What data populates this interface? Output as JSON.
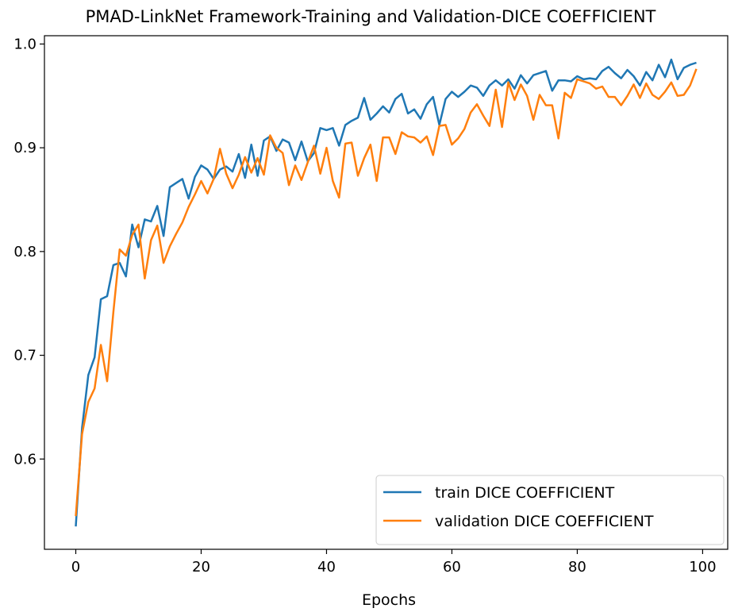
{
  "chart_data": {
    "type": "line",
    "title": "PMAD-LinkNet Framework-Training and Validation-DICE COEFFICIENT",
    "xlabel": "Epochs",
    "ylabel": "",
    "xlim": [
      -5,
      104
    ],
    "ylim": [
      0.513,
      1.008
    ],
    "xticks": [
      0,
      20,
      40,
      60,
      80,
      100
    ],
    "yticks": [
      0.6,
      0.7,
      0.8,
      0.9,
      1.0
    ],
    "xtick_labels": [
      "0",
      "20",
      "40",
      "60",
      "80",
      "100"
    ],
    "ytick_labels": [
      "0.6",
      "0.7",
      "0.8",
      "0.9",
      "1.0"
    ],
    "grid": false,
    "legend_position": "lower-right",
    "x": [
      0,
      1,
      2,
      3,
      4,
      5,
      6,
      7,
      8,
      9,
      10,
      11,
      12,
      13,
      14,
      15,
      16,
      17,
      18,
      19,
      20,
      21,
      22,
      23,
      24,
      25,
      26,
      27,
      28,
      29,
      30,
      31,
      32,
      33,
      34,
      35,
      36,
      37,
      38,
      39,
      40,
      41,
      42,
      43,
      44,
      45,
      46,
      47,
      48,
      49,
      50,
      51,
      52,
      53,
      54,
      55,
      56,
      57,
      58,
      59,
      60,
      61,
      62,
      63,
      64,
      65,
      66,
      67,
      68,
      69,
      70,
      71,
      72,
      73,
      74,
      75,
      76,
      77,
      78,
      79,
      80,
      81,
      82,
      83,
      84,
      85,
      86,
      87,
      88,
      89,
      90,
      91,
      92,
      93,
      94,
      95,
      96,
      97,
      98,
      99
    ],
    "series": [
      {
        "name": "train DICE COEFFICIENT",
        "color": "#1f77b4",
        "values": [
          0.535,
          0.63,
          0.681,
          0.698,
          0.754,
          0.757,
          0.787,
          0.789,
          0.776,
          0.826,
          0.804,
          0.831,
          0.829,
          0.844,
          0.815,
          0.862,
          0.866,
          0.87,
          0.851,
          0.872,
          0.883,
          0.879,
          0.87,
          0.879,
          0.882,
          0.877,
          0.894,
          0.871,
          0.903,
          0.873,
          0.907,
          0.911,
          0.897,
          0.908,
          0.905,
          0.888,
          0.906,
          0.887,
          0.895,
          0.919,
          0.917,
          0.919,
          0.902,
          0.922,
          0.926,
          0.929,
          0.948,
          0.927,
          0.933,
          0.94,
          0.934,
          0.947,
          0.952,
          0.933,
          0.937,
          0.928,
          0.942,
          0.949,
          0.922,
          0.947,
          0.954,
          0.949,
          0.954,
          0.96,
          0.958,
          0.95,
          0.96,
          0.965,
          0.96,
          0.966,
          0.957,
          0.97,
          0.962,
          0.97,
          0.972,
          0.974,
          0.955,
          0.965,
          0.965,
          0.964,
          0.969,
          0.966,
          0.967,
          0.966,
          0.974,
          0.978,
          0.972,
          0.967,
          0.975,
          0.969,
          0.96,
          0.973,
          0.965,
          0.98,
          0.968,
          0.985,
          0.966,
          0.977,
          0.98,
          0.982
        ]
      },
      {
        "name": "validation DICE COEFFICIENT",
        "color": "#ff7f0e",
        "values": [
          0.545,
          0.624,
          0.655,
          0.668,
          0.71,
          0.675,
          0.742,
          0.802,
          0.796,
          0.816,
          0.826,
          0.774,
          0.811,
          0.825,
          0.789,
          0.805,
          0.817,
          0.828,
          0.843,
          0.855,
          0.868,
          0.856,
          0.87,
          0.899,
          0.875,
          0.861,
          0.874,
          0.891,
          0.876,
          0.89,
          0.874,
          0.912,
          0.9,
          0.895,
          0.864,
          0.883,
          0.869,
          0.886,
          0.902,
          0.875,
          0.9,
          0.868,
          0.852,
          0.904,
          0.905,
          0.873,
          0.89,
          0.903,
          0.868,
          0.91,
          0.91,
          0.894,
          0.915,
          0.911,
          0.91,
          0.905,
          0.911,
          0.893,
          0.921,
          0.922,
          0.903,
          0.909,
          0.918,
          0.934,
          0.942,
          0.931,
          0.921,
          0.956,
          0.92,
          0.963,
          0.946,
          0.961,
          0.95,
          0.927,
          0.951,
          0.941,
          0.941,
          0.909,
          0.953,
          0.948,
          0.966,
          0.964,
          0.962,
          0.957,
          0.959,
          0.949,
          0.949,
          0.941,
          0.95,
          0.961,
          0.948,
          0.962,
          0.951,
          0.947,
          0.954,
          0.963,
          0.95,
          0.951,
          0.96,
          0.976
        ]
      }
    ]
  }
}
